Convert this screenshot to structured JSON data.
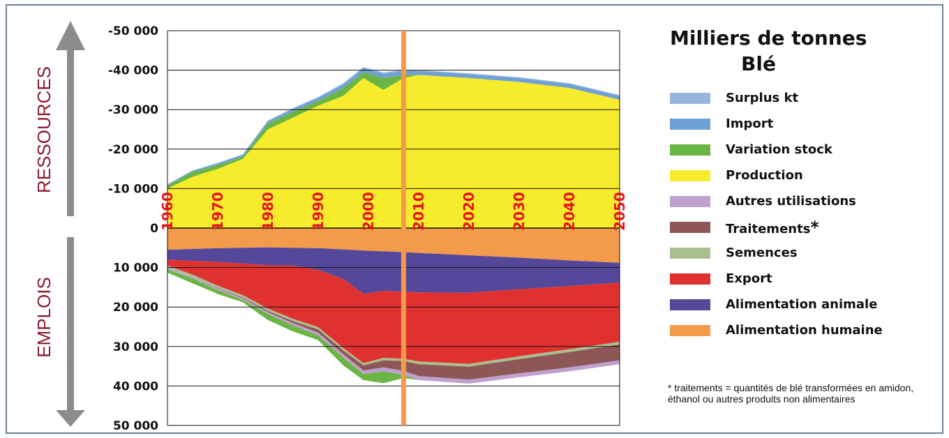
{
  "legend": {
    "title_line1": "Milliers de tonnes",
    "title_line2": "Blé",
    "items": [
      {
        "label": "Surplus kt",
        "star": "",
        "color": "#97b4dc"
      },
      {
        "label": "Import",
        "star": "",
        "color": "#6fa0d6"
      },
      {
        "label": "Variation stock",
        "star": "",
        "color": "#6bb545"
      },
      {
        "label": "Production",
        "star": "",
        "color": "#f7ec2c"
      },
      {
        "label": "Autres utilisations",
        "star": "",
        "color": "#bfa1cf"
      },
      {
        "label": "Traitements",
        "star": "*",
        "color": "#8e5757"
      },
      {
        "label": "Semences",
        "star": "",
        "color": "#a9c08e"
      },
      {
        "label": "Export",
        "star": "",
        "color": "#e03131"
      },
      {
        "label": "Alimentation animale",
        "star": "",
        "color": "#55479a"
      },
      {
        "label": "Alimentation humaine",
        "star": "",
        "color": "#f39b4b"
      }
    ]
  },
  "footnote": "* traitements = quantités de blé transformées en amidon, éthanol ou autres produits non alimentaires",
  "side_labels": {
    "top": "RESSOURCES",
    "bottom": "EMPLOIS"
  },
  "chart_data": {
    "type": "area",
    "stacked": true,
    "title": "Milliers de tonnes Blé",
    "x_ticks": [
      1960,
      1970,
      1980,
      1990,
      2000,
      2010,
      2020,
      2030,
      2040,
      2050
    ],
    "xlim": [
      1960,
      2050
    ],
    "y_ticks": [
      {
        "value": 50000,
        "label": "-50 000"
      },
      {
        "value": 40000,
        "label": "-40 000"
      },
      {
        "value": 30000,
        "label": "-30 000"
      },
      {
        "value": 20000,
        "label": "-20 000"
      },
      {
        "value": 10000,
        "label": "-10 000"
      },
      {
        "value": 0,
        "label": "0"
      },
      {
        "value": -10000,
        "label": "10 000"
      },
      {
        "value": -20000,
        "label": "20 000"
      },
      {
        "value": -30000,
        "label": "30 000"
      },
      {
        "value": -40000,
        "label": "40 000"
      },
      {
        "value": -50000,
        "label": "50 000"
      }
    ],
    "ylim": [
      -50000,
      50000
    ],
    "marker_year": 2007,
    "marker_color": "#f39b4b",
    "resources": {
      "years": [
        1960,
        1965,
        1970,
        1975,
        1980,
        1985,
        1990,
        1995,
        1999,
        2003,
        2007,
        2010,
        2020,
        2030,
        2040,
        2050
      ],
      "series": [
        {
          "name": "Production",
          "values": [
            10000,
            13000,
            15000,
            17500,
            25000,
            28000,
            31000,
            33500,
            38000,
            35000,
            38000,
            38800,
            38000,
            37000,
            35500,
            32500
          ]
        },
        {
          "name": "Variation stock",
          "values": [
            800,
            1200,
            1000,
            600,
            1500,
            1500,
            1200,
            2000,
            1500,
            3000,
            800,
            0,
            0,
            0,
            0,
            0
          ]
        },
        {
          "name": "Import",
          "values": [
            200,
            300,
            400,
            500,
            600,
            700,
            800,
            900,
            1000,
            1100,
            1000,
            1000,
            1000,
            1000,
            1000,
            1000
          ]
        },
        {
          "name": "Surplus kt",
          "values": [
            100,
            100,
            100,
            100,
            150,
            200,
            200,
            300,
            300,
            300,
            300,
            200,
            200,
            200,
            200,
            200
          ]
        }
      ]
    },
    "uses": {
      "years": [
        1960,
        1965,
        1970,
        1975,
        1980,
        1985,
        1990,
        1995,
        1999,
        2003,
        2007,
        2010,
        2020,
        2030,
        2040,
        2050
      ],
      "series": [
        {
          "name": "Alimentation humaine",
          "values": [
            5500,
            5300,
            5100,
            5000,
            4900,
            5000,
            5100,
            5400,
            5700,
            5900,
            6100,
            6300,
            6900,
            7500,
            8200,
            8800
          ]
        },
        {
          "name": "Alimentation animale",
          "values": [
            2500,
            3000,
            3500,
            4000,
            4500,
            4500,
            5500,
            7500,
            11000,
            10000,
            10000,
            10000,
            9500,
            8000,
            6500,
            5000
          ]
        },
        {
          "name": "Export",
          "values": [
            1500,
            3500,
            6000,
            8000,
            11000,
            13500,
            14500,
            17500,
            17500,
            17000,
            17000,
            17500,
            18000,
            17000,
            16000,
            15000
          ]
        },
        {
          "name": "Semences",
          "values": [
            600,
            600,
            600,
            600,
            600,
            600,
            600,
            600,
            600,
            600,
            600,
            700,
            700,
            700,
            700,
            700
          ]
        },
        {
          "name": "Traitements",
          "values": [
            0,
            0,
            100,
            200,
            300,
            500,
            800,
            1000,
            1300,
            1800,
            2500,
            3000,
            3300,
            3600,
            3900,
            4000
          ]
        },
        {
          "name": "Autres utilisations",
          "values": [
            400,
            400,
            400,
            400,
            500,
            600,
            700,
            800,
            900,
            1000,
            1000,
            1000,
            1000,
            1000,
            1000,
            1000
          ]
        },
        {
          "name": "Variation stock",
          "values": [
            800,
            1200,
            1000,
            600,
            1500,
            1500,
            1200,
            2000,
            1500,
            3000,
            800,
            0,
            0,
            0,
            0,
            0
          ]
        }
      ]
    }
  }
}
